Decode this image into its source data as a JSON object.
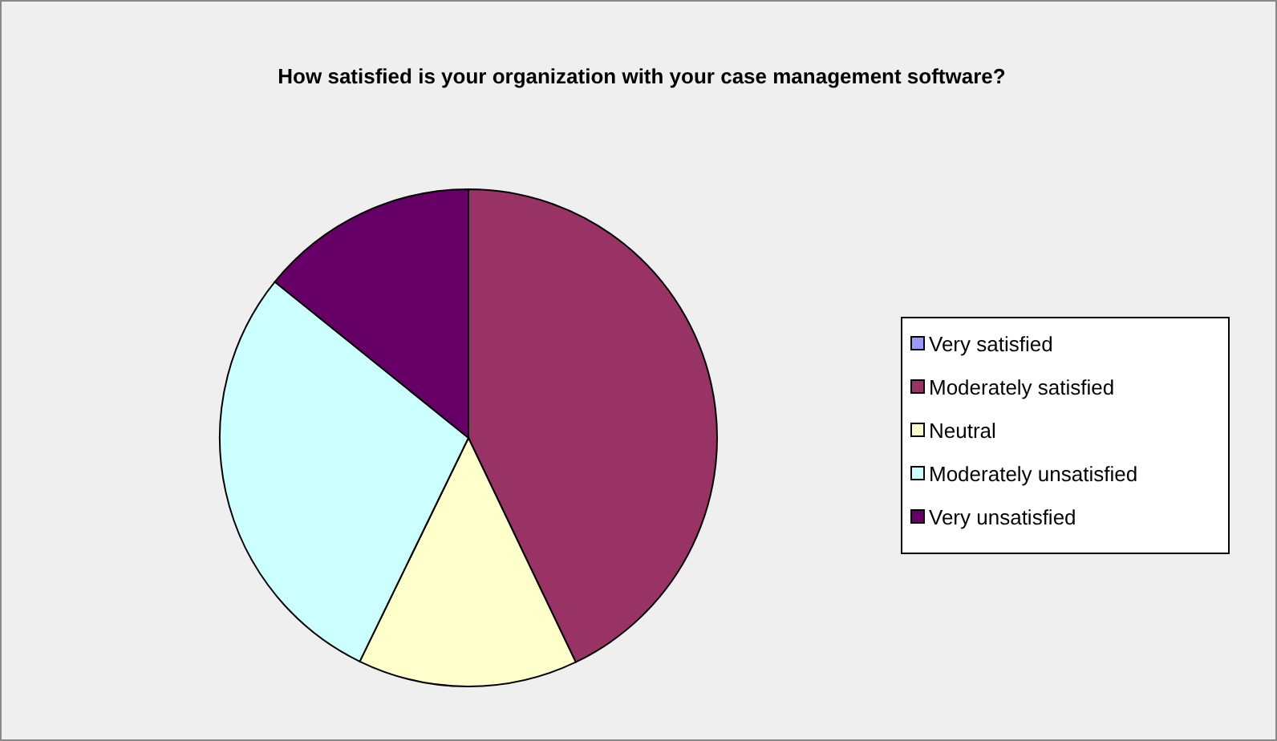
{
  "chart_data": {
    "type": "pie",
    "title": "How satisfied is your organization with your case management software?",
    "categories": [
      "Very satisfied",
      "Moderately satisfied",
      "Neutral",
      "Moderately unsatisfied",
      "Very unsatisfied"
    ],
    "values": [
      0,
      42.9,
      14.3,
      28.6,
      14.2
    ],
    "colors": [
      "#9999ff",
      "#993366",
      "#ffffcc",
      "#ccffff",
      "#660066"
    ],
    "legend": "right"
  }
}
